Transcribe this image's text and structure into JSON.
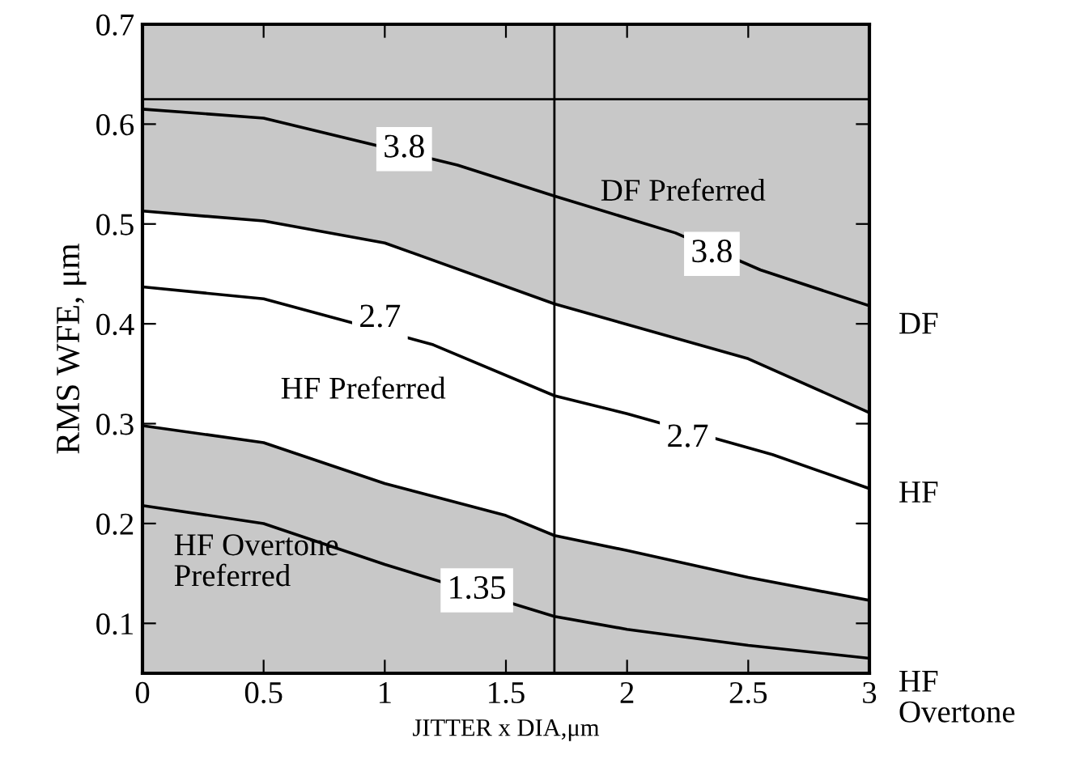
{
  "chart_data": {
    "type": "line",
    "xlabel": "JITTER x DIA,μm",
    "ylabel": "RMS WFE, μm",
    "xlim": [
      0,
      3
    ],
    "ylim": [
      0.05,
      0.7
    ],
    "xticks": [
      0,
      0.5,
      1,
      1.5,
      2,
      2.5,
      3
    ],
    "yticks": [
      0.1,
      0.2,
      0.3,
      0.4,
      0.5,
      0.6,
      0.7
    ],
    "grid": false,
    "legend": false,
    "marker": "none",
    "line_style": "solid",
    "series": [
      {
        "type": "line",
        "color": "#000000",
        "x": [
          0,
          0.5,
          1,
          1.7,
          2.5,
          3
        ],
        "values": [
          0.513,
          0.503,
          0.481,
          0.42,
          0.365,
          0.311
        ],
        "lower": [
          0.513,
          0.503,
          0.481,
          0.42,
          0.365,
          0.311
        ],
        "upper": [
          0.7,
          0.7,
          0.7,
          0.7,
          0.7,
          0.7
        ]
      },
      {
        "type": "area",
        "color": "#c8c8c8",
        "x": [
          0,
          0.5,
          1,
          1.5,
          1.7,
          2,
          2.5,
          3
        ],
        "values": [
          0.298,
          0.281,
          0.24,
          0.208,
          0.188,
          0.173,
          0.146,
          0.123
        ]
      },
      {
        "type": "line",
        "color": "#000000",
        "x": [
          0,
          0.5,
          1.3,
          1.7,
          2.2,
          2.55,
          3
        ],
        "values": [
          0.615,
          0.606,
          0.559,
          0.528,
          0.491,
          0.454,
          0.418
        ]
      },
      {
        "type": "line",
        "color": "#000000",
        "x": [
          0,
          0.5,
          1.2,
          1.7,
          2,
          2.6,
          3
        ],
        "values": [
          0.437,
          0.425,
          0.379,
          0.328,
          0.31,
          0.269,
          0.235
        ]
      },
      {
        "type": "line",
        "color": "#000000",
        "x": [
          0,
          0.5,
          1,
          1.7,
          2,
          2.5,
          3
        ],
        "values": [
          0.218,
          0.2,
          0.159,
          0.107,
          0.094,
          0.078,
          0.065
        ]
      }
    ],
    "ref_lines": [
      {
        "axis": "y",
        "value": 0.625,
        "color": "#000000"
      },
      {
        "axis": "x",
        "value": 1.7,
        "color": "#000000"
      }
    ],
    "annotations": [
      {
        "text": "3.8",
        "x": 1.08,
        "y": 0.575
      },
      {
        "text": "3.8",
        "x": 2.35,
        "y": 0.47
      },
      {
        "text": "2.7",
        "x": 0.98,
        "y": 0.405
      },
      {
        "text": "2.7",
        "x": 2.25,
        "y": 0.285
      },
      {
        "text": "1.35",
        "x": 1.38,
        "y": 0.133
      },
      "DF Preferred",
      "HF Preferred",
      "HF Overtone\nPreferred",
      "DF",
      "HF",
      "HF\nOvertone"
    ]
  }
}
